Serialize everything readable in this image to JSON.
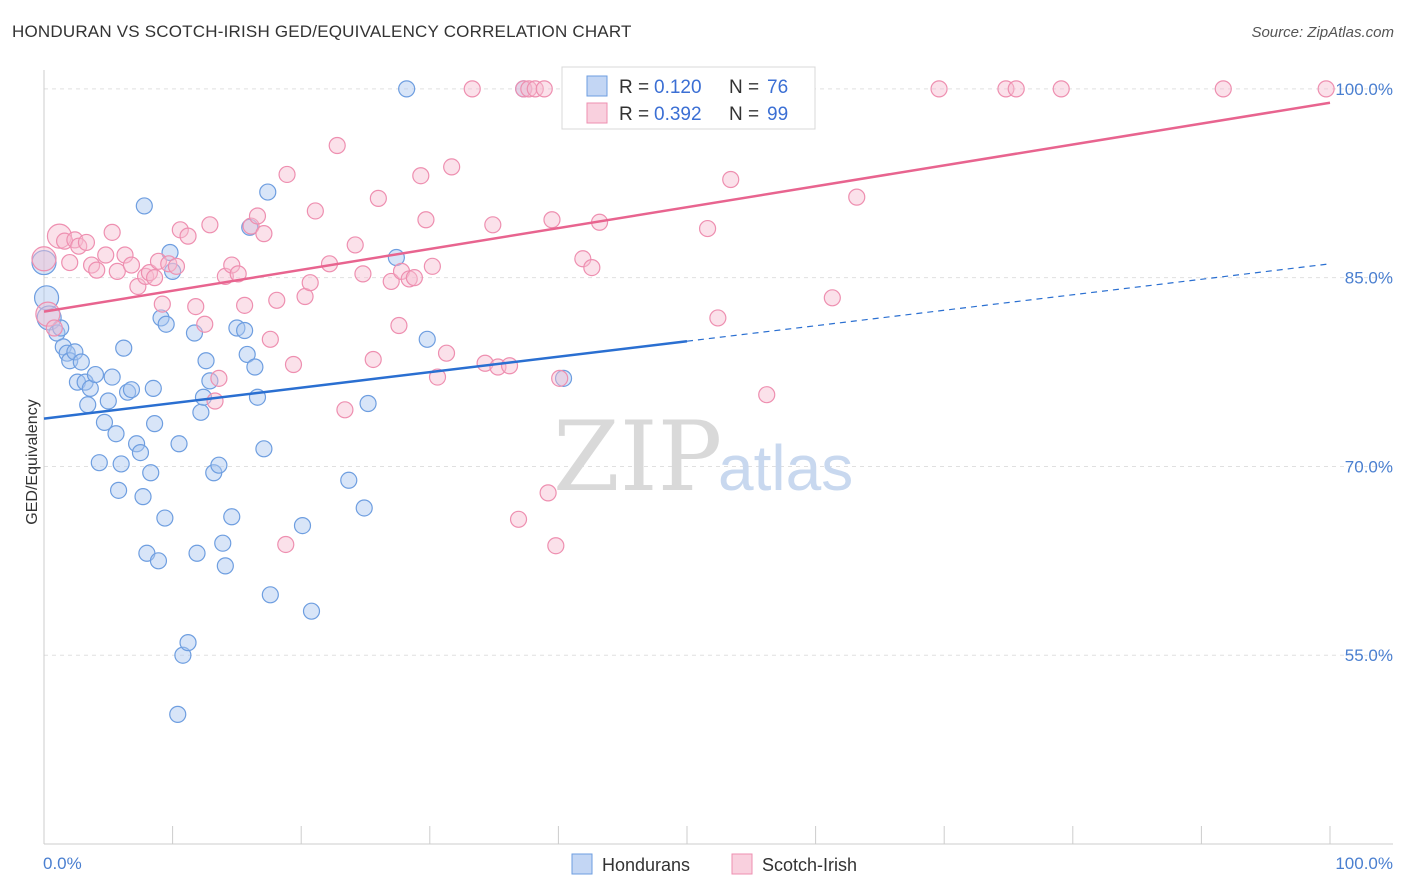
{
  "header": {
    "title": "HONDURAN VS SCOTCH-IRISH GED/EQUIVALENCY CORRELATION CHART",
    "source": "Source: ZipAtlas.com"
  },
  "watermark": {
    "zip": "ZIP",
    "atlas": "atlas"
  },
  "legend": {
    "rows": [
      {
        "r_label": "R = ",
        "r_value": "0.120",
        "n_label": "N = ",
        "n_value": "76"
      },
      {
        "r_label": "R = ",
        "r_value": "0.392",
        "n_label": "N = ",
        "n_value": "99"
      }
    ]
  },
  "bottom_legend": {
    "items": [
      "Hondurans",
      "Scotch-Irish"
    ]
  },
  "colors": {
    "blue_fill": "#a9c5ef",
    "blue_stroke": "#6e9ee0",
    "blue_line": "#2a6fd1",
    "pink_fill": "#f7bcd0",
    "pink_stroke": "#ee8fb0",
    "pink_line": "#e8648f",
    "tick_text": "#4a7fd0",
    "grid": "#e0e0e0"
  },
  "chart_data": {
    "type": "scatter",
    "title": "HONDURAN VS SCOTCH-IRISH GED/EQUIVALENCY CORRELATION CHART",
    "xlabel": "",
    "ylabel": "GED/Equivalency",
    "xlim": [
      0,
      100
    ],
    "ylim": [
      40,
      101.5
    ],
    "x_tick_labels": [
      "0.0%",
      "100.0%"
    ],
    "y_ticks": [
      55,
      70,
      85,
      100
    ],
    "y_tick_labels": [
      "55.0%",
      "70.0%",
      "85.0%",
      "100.0%"
    ],
    "grid": "horizontal dashed",
    "legend_position": "top-center",
    "series": [
      {
        "name": "Hondurans",
        "color": "blue",
        "r": 0.12,
        "n": 76,
        "trend": {
          "x": [
            0,
            100
          ],
          "y": [
            73.8,
            86.1
          ],
          "solid_until_x": 50
        },
        "points": [
          [
            0.0,
            86.2
          ],
          [
            0.2,
            83.4
          ],
          [
            0.4,
            81.8
          ],
          [
            1.0,
            80.6
          ],
          [
            1.3,
            81.0
          ],
          [
            1.5,
            79.5
          ],
          [
            1.8,
            79.0
          ],
          [
            2.0,
            78.4
          ],
          [
            2.4,
            79.1
          ],
          [
            2.6,
            76.7
          ],
          [
            2.9,
            78.3
          ],
          [
            3.2,
            76.7
          ],
          [
            3.4,
            74.9
          ],
          [
            3.6,
            76.2
          ],
          [
            4.0,
            77.3
          ],
          [
            4.3,
            70.3
          ],
          [
            4.7,
            73.5
          ],
          [
            5.0,
            75.2
          ],
          [
            5.3,
            77.1
          ],
          [
            5.6,
            72.6
          ],
          [
            5.8,
            68.1
          ],
          [
            6.0,
            70.2
          ],
          [
            6.2,
            79.4
          ],
          [
            6.5,
            75.9
          ],
          [
            6.8,
            76.1
          ],
          [
            7.2,
            71.8
          ],
          [
            7.5,
            71.1
          ],
          [
            7.7,
            67.6
          ],
          [
            7.8,
            90.7
          ],
          [
            8.0,
            63.1
          ],
          [
            8.3,
            69.5
          ],
          [
            8.5,
            76.2
          ],
          [
            8.6,
            73.4
          ],
          [
            8.9,
            62.5
          ],
          [
            9.1,
            81.8
          ],
          [
            9.4,
            65.9
          ],
          [
            9.5,
            81.3
          ],
          [
            9.8,
            87.0
          ],
          [
            10.0,
            85.5
          ],
          [
            10.4,
            50.3
          ],
          [
            10.5,
            71.8
          ],
          [
            10.8,
            55.0
          ],
          [
            11.2,
            56.0
          ],
          [
            11.7,
            80.6
          ],
          [
            11.9,
            63.1
          ],
          [
            12.2,
            74.3
          ],
          [
            12.4,
            75.5
          ],
          [
            12.6,
            78.4
          ],
          [
            12.9,
            76.8
          ],
          [
            13.2,
            69.5
          ],
          [
            13.6,
            70.1
          ],
          [
            13.9,
            63.9
          ],
          [
            14.1,
            62.1
          ],
          [
            14.6,
            66.0
          ],
          [
            15.0,
            81.0
          ],
          [
            15.6,
            80.8
          ],
          [
            15.8,
            78.9
          ],
          [
            16.0,
            89.0
          ],
          [
            16.4,
            77.9
          ],
          [
            16.6,
            75.5
          ],
          [
            17.1,
            71.4
          ],
          [
            17.4,
            91.8
          ],
          [
            17.6,
            59.8
          ],
          [
            20.1,
            65.3
          ],
          [
            20.8,
            58.5
          ],
          [
            23.7,
            68.9
          ],
          [
            24.9,
            66.7
          ],
          [
            25.2,
            75.0
          ],
          [
            27.4,
            86.6
          ],
          [
            28.2,
            100.0
          ],
          [
            29.8,
            80.1
          ],
          [
            40.4,
            77.0
          ],
          [
            49.6,
            100.0
          ],
          [
            52.0,
            100.0
          ],
          [
            47.1,
            100.0
          ],
          [
            37.3,
            100.0
          ]
        ]
      },
      {
        "name": "Scotch-Irish",
        "color": "pink",
        "r": 0.392,
        "n": 99,
        "trend": {
          "x": [
            0,
            100
          ],
          "y": [
            82.3,
            98.9
          ]
        },
        "points": [
          [
            0.0,
            86.5
          ],
          [
            0.3,
            82.1
          ],
          [
            0.8,
            81.0
          ],
          [
            1.2,
            88.3
          ],
          [
            1.6,
            87.9
          ],
          [
            2.0,
            86.2
          ],
          [
            2.4,
            88.0
          ],
          [
            2.7,
            87.5
          ],
          [
            3.3,
            87.8
          ],
          [
            3.7,
            86.0
          ],
          [
            4.1,
            85.6
          ],
          [
            4.8,
            86.8
          ],
          [
            5.3,
            88.6
          ],
          [
            5.7,
            85.5
          ],
          [
            6.3,
            86.8
          ],
          [
            6.8,
            86.0
          ],
          [
            7.3,
            84.3
          ],
          [
            7.9,
            85.1
          ],
          [
            8.2,
            85.4
          ],
          [
            8.6,
            85.0
          ],
          [
            8.9,
            86.3
          ],
          [
            9.2,
            82.9
          ],
          [
            9.7,
            86.1
          ],
          [
            10.3,
            85.9
          ],
          [
            10.6,
            88.8
          ],
          [
            11.2,
            88.3
          ],
          [
            11.8,
            82.7
          ],
          [
            12.5,
            81.3
          ],
          [
            12.9,
            89.2
          ],
          [
            13.3,
            75.2
          ],
          [
            13.6,
            77.0
          ],
          [
            14.1,
            85.1
          ],
          [
            14.6,
            86.0
          ],
          [
            15.1,
            85.3
          ],
          [
            15.6,
            82.8
          ],
          [
            16.1,
            89.1
          ],
          [
            16.6,
            89.9
          ],
          [
            17.1,
            88.5
          ],
          [
            17.6,
            80.1
          ],
          [
            18.1,
            83.2
          ],
          [
            18.9,
            93.2
          ],
          [
            19.4,
            78.1
          ],
          [
            20.3,
            83.5
          ],
          [
            20.7,
            84.6
          ],
          [
            21.1,
            90.3
          ],
          [
            22.2,
            86.1
          ],
          [
            22.8,
            95.5
          ],
          [
            23.4,
            74.5
          ],
          [
            24.2,
            87.6
          ],
          [
            24.8,
            85.3
          ],
          [
            25.6,
            78.5
          ],
          [
            26.0,
            91.3
          ],
          [
            27.0,
            84.7
          ],
          [
            27.6,
            81.2
          ],
          [
            27.8,
            85.5
          ],
          [
            28.4,
            84.9
          ],
          [
            28.8,
            85.0
          ],
          [
            29.3,
            93.1
          ],
          [
            29.7,
            89.6
          ],
          [
            30.2,
            85.9
          ],
          [
            30.6,
            77.1
          ],
          [
            31.3,
            79.0
          ],
          [
            31.7,
            93.8
          ],
          [
            33.3,
            100.0
          ],
          [
            34.3,
            78.2
          ],
          [
            34.9,
            89.2
          ],
          [
            35.3,
            77.9
          ],
          [
            36.2,
            78.0
          ],
          [
            36.9,
            65.8
          ],
          [
            37.3,
            100.0
          ],
          [
            37.7,
            100.0
          ],
          [
            38.2,
            100.0
          ],
          [
            38.9,
            100.0
          ],
          [
            39.2,
            67.9
          ],
          [
            39.5,
            89.6
          ],
          [
            39.8,
            63.7
          ],
          [
            40.1,
            77.0
          ],
          [
            41.3,
            100.0
          ],
          [
            41.9,
            86.5
          ],
          [
            42.6,
            85.8
          ],
          [
            43.2,
            89.4
          ],
          [
            44.7,
            100.0
          ],
          [
            46.1,
            100.0
          ],
          [
            47.9,
            100.0
          ],
          [
            50.2,
            100.0
          ],
          [
            51.6,
            88.9
          ],
          [
            52.4,
            81.8
          ],
          [
            53.4,
            92.8
          ],
          [
            55.8,
            100.0
          ],
          [
            56.2,
            75.7
          ],
          [
            61.3,
            83.4
          ],
          [
            63.2,
            91.4
          ],
          [
            69.6,
            100.0
          ],
          [
            74.8,
            100.0
          ],
          [
            75.6,
            100.0
          ],
          [
            79.1,
            100.0
          ],
          [
            91.7,
            100.0
          ],
          [
            99.7,
            100.0
          ],
          [
            18.8,
            63.8
          ]
        ]
      }
    ]
  }
}
